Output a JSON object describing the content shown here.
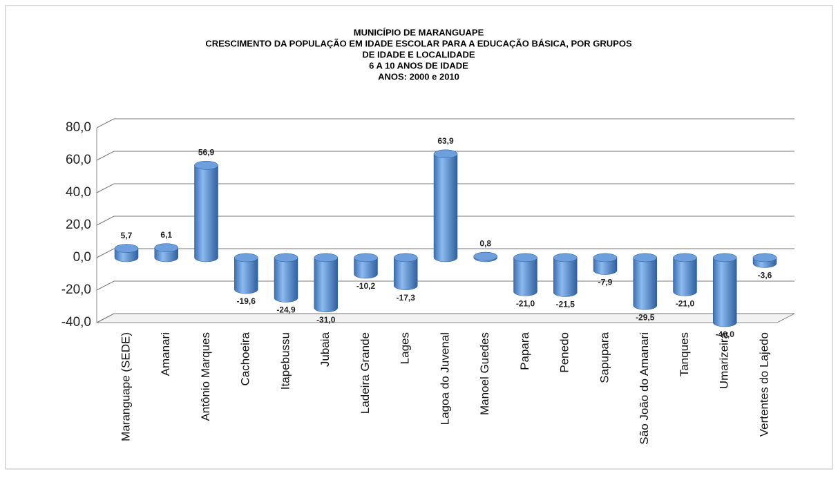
{
  "chart_data": {
    "type": "bar",
    "title": [
      "MUNICÍPIO DE MARANGUAPE",
      "CRESCIMENTO DA POPULAÇÃO EM IDADE ESCOLAR PARA A EDUCAÇÃO BÁSICA, POR GRUPOS",
      "DE IDADE E LOCALIDADE",
      "6 A 10 ANOS DE IDADE",
      "ANOS: 2000 e 2010"
    ],
    "categories": [
      "Maranguape (SEDE)",
      "Amanari",
      "Antônio Marques",
      "Cachoeira",
      "Itapebussu",
      "Jubaia",
      "Ladeira Grande",
      "Lages",
      "Lagoa do Juvenal",
      "Manoel Guedes",
      "Papara",
      "Penedo",
      "Sapupara",
      "São João do Amanari",
      "Tanques",
      "Umarizeira",
      "Vertentes do Lajedo"
    ],
    "values": [
      5.7,
      6.1,
      56.9,
      -19.6,
      -24.9,
      -31.0,
      -10.2,
      -17.3,
      63.9,
      0.8,
      -21.0,
      -21.5,
      -7.9,
      -29.5,
      -21.0,
      -40.0,
      -3.6
    ],
    "value_labels": [
      "5,7",
      "6,1",
      "56,9",
      "-19,6",
      "-24,9",
      "-31,0",
      "-10,2",
      "-17,3",
      "63,9",
      "0,8",
      "-21,0",
      "-21,5",
      "-7,9",
      "-29,5",
      "-21,0",
      "-40,0",
      "-3,6"
    ],
    "color": "#4f81bd",
    "ylim": [
      -40,
      80
    ],
    "yticks": [
      {
        "value": -40,
        "label": "-40,0"
      },
      {
        "value": -20,
        "label": "-20,0"
      },
      {
        "value": 0,
        "label": "0,0"
      },
      {
        "value": 20,
        "label": "20,0"
      },
      {
        "value": 40,
        "label": "40,0"
      },
      {
        "value": 60,
        "label": "60,0"
      },
      {
        "value": 80,
        "label": "80,0"
      }
    ],
    "grid": true
  }
}
